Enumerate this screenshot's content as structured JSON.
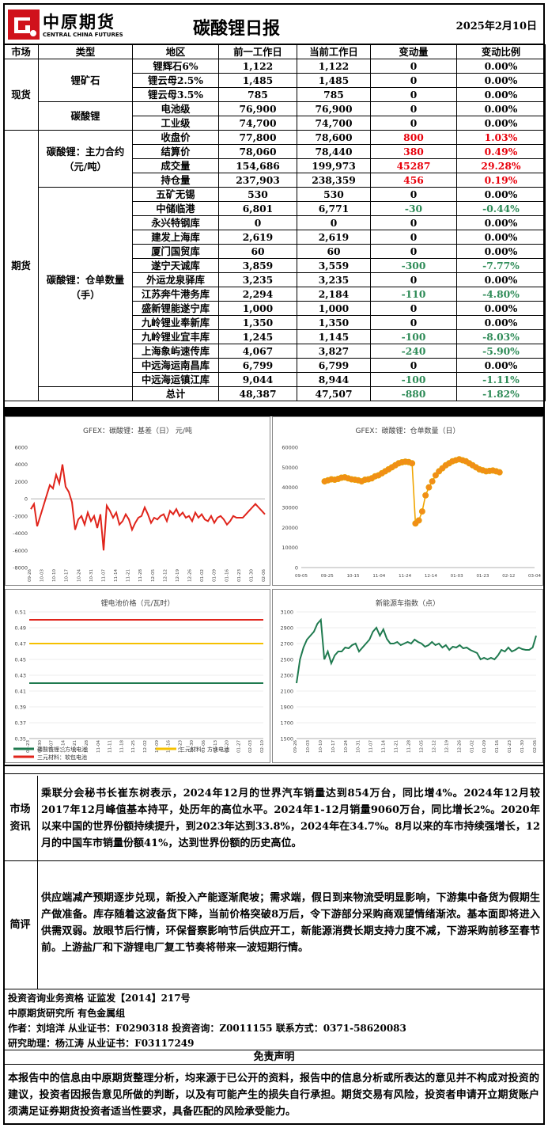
{
  "header": {
    "logo_cn": "中原期货",
    "logo_en": "CENTRAL CHINA FUTURES",
    "title": "碳酸锂日报",
    "date": "2025年2月10日"
  },
  "table": {
    "columns": [
      "市场",
      "类型",
      "地区",
      "前一工作日",
      "当前工作日",
      "变动量",
      "变动比例"
    ],
    "spot_label": "现货",
    "futures_label": "期货",
    "ore_label": "锂矿石",
    "carbonate_label": "碳酸锂",
    "main_contract_label": "碳酸锂：主力合约（元/吨）",
    "warehouse_label": "碳酸锂：仓单数量（手）",
    "ore_rows": [
      {
        "name": "锂辉石6%",
        "prev": "1,122",
        "curr": "1,122",
        "chg": "0",
        "pct": "0.00%",
        "tone": ""
      },
      {
        "name": "锂云母2.5%",
        "prev": "1,485",
        "curr": "1,485",
        "chg": "0",
        "pct": "0.00%",
        "tone": ""
      },
      {
        "name": "锂云母3.5%",
        "prev": "785",
        "curr": "785",
        "chg": "0",
        "pct": "0.00%",
        "tone": ""
      }
    ],
    "carbonate_rows": [
      {
        "name": "电池级",
        "prev": "76,900",
        "curr": "76,900",
        "chg": "0",
        "pct": "0.00%",
        "tone": ""
      },
      {
        "name": "工业级",
        "prev": "74,700",
        "curr": "74,700",
        "chg": "0",
        "pct": "0.00%",
        "tone": ""
      }
    ],
    "contract_rows": [
      {
        "name": "收盘价",
        "prev": "77,800",
        "curr": "78,600",
        "chg": "800",
        "pct": "1.03%",
        "tone": "red"
      },
      {
        "name": "结算价",
        "prev": "78,060",
        "curr": "78,440",
        "chg": "380",
        "pct": "0.49%",
        "tone": "red"
      },
      {
        "name": "成交量",
        "prev": "154,686",
        "curr": "199,973",
        "chg": "45287",
        "pct": "29.28%",
        "tone": "red"
      },
      {
        "name": "持仓量",
        "prev": "237,903",
        "curr": "238,359",
        "chg": "456",
        "pct": "0.19%",
        "tone": "red"
      }
    ],
    "warehouse_rows": [
      {
        "name": "五矿无锡",
        "prev": "530",
        "curr": "530",
        "chg": "0",
        "pct": "0.00%",
        "tone": ""
      },
      {
        "name": "中储临港",
        "prev": "6,801",
        "curr": "6,771",
        "chg": "-30",
        "pct": "-0.44%",
        "tone": "green"
      },
      {
        "name": "永兴特钢库",
        "prev": "0",
        "curr": "0",
        "chg": "0",
        "pct": "0.00%",
        "tone": ""
      },
      {
        "name": "建发上海库",
        "prev": "2,619",
        "curr": "2,619",
        "chg": "0",
        "pct": "0.00%",
        "tone": ""
      },
      {
        "name": "厦门国贸库",
        "prev": "60",
        "curr": "60",
        "chg": "0",
        "pct": "0.00%",
        "tone": ""
      },
      {
        "name": "遂宁天诚库",
        "prev": "3,859",
        "curr": "3,559",
        "chg": "-300",
        "pct": "-7.77%",
        "tone": "green"
      },
      {
        "name": "外运龙泉驿库",
        "prev": "3,235",
        "curr": "3,235",
        "chg": "0",
        "pct": "0.00%",
        "tone": ""
      },
      {
        "name": "江苏奔牛港务库",
        "prev": "2,294",
        "curr": "2,184",
        "chg": "-110",
        "pct": "-4.80%",
        "tone": "green"
      },
      {
        "name": "盛新锂能遂宁库",
        "prev": "1,000",
        "curr": "1,000",
        "chg": "0",
        "pct": "0.00%",
        "tone": ""
      },
      {
        "name": "九岭锂业奉新库",
        "prev": "1,350",
        "curr": "1,350",
        "chg": "0",
        "pct": "0.00%",
        "tone": ""
      },
      {
        "name": "九岭锂业宜丰库",
        "prev": "1,245",
        "curr": "1,145",
        "chg": "-100",
        "pct": "-8.03%",
        "tone": "green"
      },
      {
        "name": "上海象屿速传库",
        "prev": "4,067",
        "curr": "3,827",
        "chg": "-240",
        "pct": "-5.90%",
        "tone": "green"
      },
      {
        "name": "中远海运南昌库",
        "prev": "6,799",
        "curr": "6,799",
        "chg": "0",
        "pct": "0.00%",
        "tone": ""
      },
      {
        "name": "中远海运镇江库",
        "prev": "9,044",
        "curr": "8,944",
        "chg": "-100",
        "pct": "-1.11%",
        "tone": "green"
      },
      {
        "name": "总计",
        "prev": "48,387",
        "curr": "47,507",
        "chg": "-880",
        "pct": "-1.82%",
        "tone": "green"
      }
    ]
  },
  "chart_data": [
    {
      "type": "line",
      "title": "GFEX：碳酸锂：基差（日） 元/吨",
      "ylim": [
        -8000,
        6000
      ],
      "yticks": [
        "-8000",
        "-6000",
        "-4000",
        "-2000",
        "0",
        "2000",
        "4000",
        "6000"
      ],
      "xticks": [
        "09-26",
        "10-03",
        "10-10",
        "10-17",
        "10-24",
        "10-31",
        "11-07",
        "11-14",
        "11-21",
        "11-28",
        "12-05",
        "12-12",
        "12-19",
        "12-26",
        "01-02",
        "01-09",
        "01-16",
        "01-23",
        "01-30",
        "02-06"
      ],
      "color": "#e0241b",
      "series": [
        {
          "values": [
            -1200,
            -600,
            -3200,
            -2000,
            -800,
            400,
            1600,
            1200,
            2800,
            1800,
            4000,
            1400,
            800,
            -400,
            -3600,
            -2400,
            -2000,
            -3000,
            -1600,
            -2600,
            -2000,
            -3400,
            -1800,
            -6000,
            -800,
            -1400,
            -2200,
            -1600,
            -3000,
            -2600,
            -1800,
            -2400,
            -3600,
            -2800,
            -2200,
            -2000,
            -1000,
            -1800,
            -2800,
            -2200,
            -2400,
            -2000,
            -1800,
            -2600,
            -1400,
            -1800,
            -1200,
            -2000,
            -1600,
            -2200,
            -2000,
            -2600,
            -1600,
            -2200,
            -1800,
            -2400,
            -2600,
            -2000,
            -2800,
            -2200,
            -2000,
            -2400,
            -3000,
            -2600,
            -2000,
            -2200,
            -2200,
            -2200,
            -1800,
            -1400,
            -1000,
            -600,
            -1000,
            -1400,
            -1800
          ]
        }
      ]
    },
    {
      "type": "line",
      "title": "GFEX：碳酸锂：仓单数量（日）",
      "ylim": [
        0,
        60000
      ],
      "yticks": [
        "0",
        "10000",
        "20000",
        "30000",
        "40000",
        "50000",
        "60000"
      ],
      "xticks": [
        "09-05",
        "09-25",
        "10-15",
        "11-04",
        "11-24",
        "12-14",
        "01-03",
        "01-23",
        "02-12",
        "03-04"
      ],
      "color": "#f0a500",
      "series": [
        {
          "values": [
            43000,
            43500,
            44000,
            43800,
            44200,
            44800,
            45000,
            44500,
            44000,
            43800,
            43500,
            43000,
            43800,
            44000,
            44500,
            45500,
            46000,
            47000,
            48000,
            49000,
            50000,
            51000,
            52000,
            52500,
            52800,
            52600,
            52000,
            22000,
            23500,
            28000,
            36000,
            40000,
            43000,
            46000,
            48000,
            49500,
            51000,
            52000,
            53000,
            53500,
            54000,
            53500,
            53000,
            52000,
            51000,
            50000,
            49000,
            48500,
            48000,
            48200,
            48400,
            48000,
            47500
          ]
        }
      ]
    },
    {
      "type": "line",
      "title": "锂电池价格（元/瓦时）",
      "ylim": [
        0.35,
        0.51
      ],
      "yticks": [
        "0.35",
        "0.37",
        "0.39",
        "0.41",
        "0.43",
        "0.45",
        "0.47",
        "0.49",
        "0.51"
      ],
      "xticks": [
        "09-23",
        "09-30",
        "10-07",
        "10-14",
        "10-21",
        "10-28",
        "11-04",
        "11-11",
        "11-18",
        "11-25",
        "12-02",
        "12-09",
        "12-16",
        "12-23",
        "12-30",
        "01-06",
        "01-13",
        "01-20",
        "01-27",
        "02-03",
        "02-10"
      ],
      "series": [
        {
          "name": "磷酸铁锂：方块电池",
          "values": [
            0.42,
            0.42
          ],
          "color": "#1f7a4f"
        },
        {
          "name": "三元材料：方块电池",
          "values": [
            0.47,
            0.47
          ],
          "color": "#f5c000"
        },
        {
          "name": "三元材料：软包电池",
          "values": [
            0.5,
            0.5
          ],
          "color": "#e0241b"
        }
      ]
    },
    {
      "type": "line",
      "title": "新能源车指数（点）",
      "ylim": [
        1500,
        3100
      ],
      "yticks": [
        "1500",
        "1700",
        "1900",
        "2100",
        "2300",
        "2500",
        "2700",
        "2900",
        "3100"
      ],
      "xticks": [
        "09-26",
        "10-03",
        "10-10",
        "10-17",
        "10-24",
        "10-31",
        "11-07",
        "11-14",
        "11-21",
        "11-28",
        "12-05",
        "12-12",
        "12-19",
        "12-26",
        "01-02",
        "01-09",
        "01-16",
        "01-23",
        "01-30",
        "02-06"
      ],
      "color": "#1f7a4f",
      "series": [
        {
          "values": [
            2200,
            2500,
            2650,
            2750,
            2800,
            2850,
            2950,
            3000,
            2500,
            2600,
            2450,
            2550,
            2600,
            2600,
            2650,
            2640,
            2680,
            2700,
            2600,
            2650,
            2700,
            2750,
            2850,
            2900,
            2800,
            2880,
            2760,
            2700,
            2700,
            2720,
            2680,
            2700,
            2720,
            2700,
            2750,
            2720,
            2700,
            2660,
            2680,
            2720,
            2680,
            2700,
            2650,
            2680,
            2620,
            2660,
            2650,
            2680,
            2640,
            2650,
            2620,
            2600,
            2580,
            2500,
            2520,
            2500,
            2520,
            2500,
            2550,
            2620,
            2600,
            2650,
            2600,
            2620,
            2650,
            2630,
            2620,
            2620,
            2650,
            2800
          ]
        }
      ]
    }
  ],
  "legend": {
    "lfp": "磷酸铁锂：方块电池",
    "ncm_block": "三元材料：方块电池",
    "ncm_pouch": "三元材料：软包电池"
  },
  "market_info": {
    "label": "市场资讯",
    "text": "乘联分会秘书长崔东树表示，2024年12月的世界汽车销量达到854万台，同比增4%。2024年12月较2017年12月峰值基本持平，处历年的高位水平。2024年1-12月销量9060万台，同比增长2%。2020年以来中国的世界份额持续提升，到2023年达到33.8%，2024年在34.7%。8月以来的车市持续强增长，12月的中国车市销量份额41%，达到世界份额的历史高位。"
  },
  "commentary": {
    "label": "简评",
    "text": "供应端减产预期逐步兑现，新投入产能逐渐爬坡；需求端，假日到来物流受明显影响，下游集中备货为假期生产做准备。库存随着这波备货下降，当前价格突破8万后，令下游部分采购商观望情绪渐浓。基本面即将进入供需双弱。放眼节后行情，环保督察影响节后供应开工，新能源消费长期支持力度不减，下游采购前移至春节前。上游盐厂和下游锂电厂复工节奏将带来一波短期行情。"
  },
  "footer": {
    "line1": "投资咨询业务资格  证监发【2014】217号",
    "line2": "中原期货研究所  有色金属组",
    "line3": "作者：刘培洋    从业证书：F0290318    投资咨询：Z0011155     联系方式：0371-58620083",
    "line4": "研究助理：杨江涛    从业证书：F03117249"
  },
  "disclaimer": {
    "title": "免责声明",
    "text": "本报告中的信息由中原期货整理分析，均来源于已公开的资料，报告中的信息分析或所表达的意见并不构成对投资的建议，投资者因报告意见所做的判断，以及有可能产生的损失自行承担。期货交易有风险，投资者申请开立期货账户须满足证券期货投资者适当性要求，具备匹配的风险承受能力。"
  }
}
